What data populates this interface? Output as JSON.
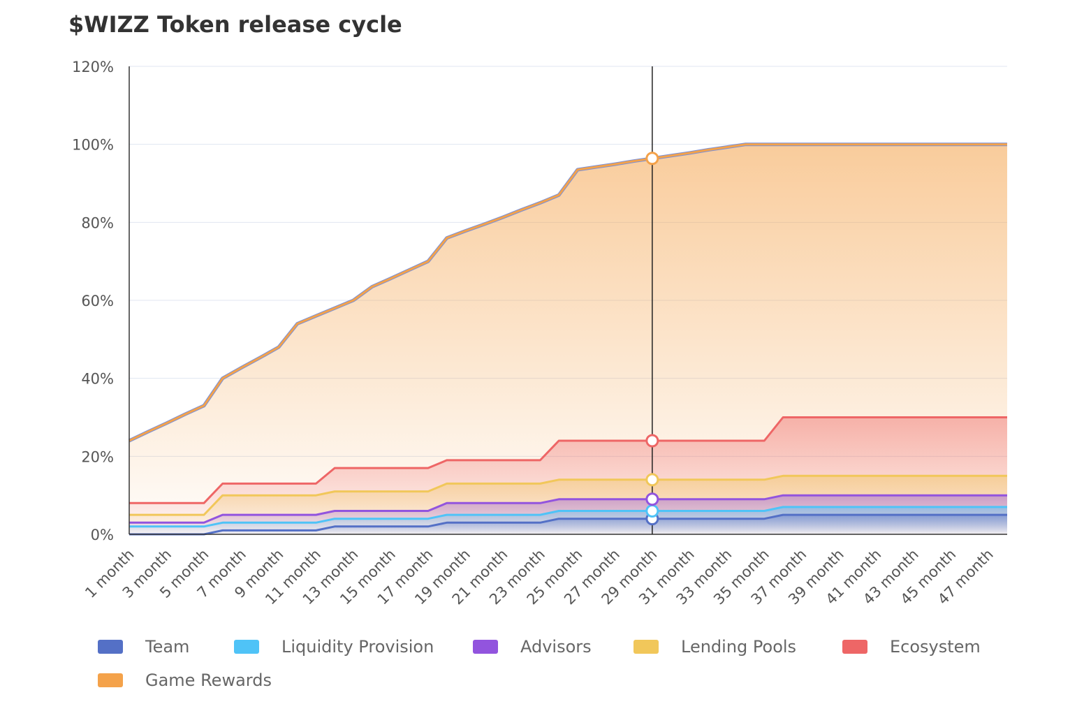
{
  "chart_data": {
    "type": "area",
    "title": "$WIZZ Token release cycle",
    "stacked": false,
    "x": [
      "1 month",
      "2 month",
      "3 month",
      "4 month",
      "5 month",
      "6 month",
      "7 month",
      "8 month",
      "9 month",
      "10 month",
      "11 month",
      "12 month",
      "13 month",
      "14 month",
      "15 month",
      "16 month",
      "17 month",
      "18 month",
      "19 month",
      "20 month",
      "21 month",
      "22 month",
      "23 month",
      "24 month",
      "25 month",
      "26 month",
      "27 month",
      "28 month",
      "29 month",
      "30 month",
      "31 month",
      "32 month",
      "33 month",
      "34 month",
      "35 month",
      "36 month",
      "37 month",
      "38 month",
      "39 month",
      "40 month",
      "41 month",
      "42 month",
      "43 month",
      "44 month",
      "45 month",
      "46 month",
      "47 month",
      "48 month"
    ],
    "x_tick_labels": [
      "1 month",
      "3 month",
      "5 month",
      "7 month",
      "9 month",
      "11 month",
      "13 month",
      "15 month",
      "17 month",
      "19 month",
      "21 month",
      "23 month",
      "25 month",
      "27 month",
      "29 month",
      "31 month",
      "33 month",
      "35 month",
      "37 month",
      "39 month",
      "41 month",
      "43 month",
      "45 month",
      "47 month"
    ],
    "y_ticks": [
      "0%",
      "20%",
      "40%",
      "60%",
      "80%",
      "100%",
      "120%"
    ],
    "ylim": [
      0,
      120
    ],
    "grid": true,
    "legend_position": "bottom",
    "highlight_index": 28,
    "series": [
      {
        "name": "Team",
        "color": "#5470c6",
        "values": [
          0,
          0,
          0,
          0,
          0,
          1,
          1,
          1,
          1,
          1,
          1,
          2,
          2,
          2,
          2,
          2,
          2,
          3,
          3,
          3,
          3,
          3,
          3,
          4,
          4,
          4,
          4,
          4,
          4,
          4,
          4,
          4,
          4,
          4,
          4,
          5,
          5,
          5,
          5,
          5,
          5,
          5,
          5,
          5,
          5,
          5,
          5,
          5
        ]
      },
      {
        "name": "Liquidity Provision",
        "color": "#4fc3f7",
        "values": [
          2,
          2,
          2,
          2,
          2,
          3,
          3,
          3,
          3,
          3,
          3,
          4,
          4,
          4,
          4,
          4,
          4,
          5,
          5,
          5,
          5,
          5,
          5,
          6,
          6,
          6,
          6,
          6,
          6,
          6,
          6,
          6,
          6,
          6,
          6,
          7,
          7,
          7,
          7,
          7,
          7,
          7,
          7,
          7,
          7,
          7,
          7,
          7
        ]
      },
      {
        "name": "Advisors",
        "color": "#9254de",
        "values": [
          3,
          3,
          3,
          3,
          3,
          5,
          5,
          5,
          5,
          5,
          5,
          6,
          6,
          6,
          6,
          6,
          6,
          8,
          8,
          8,
          8,
          8,
          8,
          9,
          9,
          9,
          9,
          9,
          9,
          9,
          9,
          9,
          9,
          9,
          9,
          10,
          10,
          10,
          10,
          10,
          10,
          10,
          10,
          10,
          10,
          10,
          10,
          10
        ]
      },
      {
        "name": "Lending Pools",
        "color": "#f1c75a",
        "values": [
          5,
          5,
          5,
          5,
          5,
          10,
          10,
          10,
          10,
          10,
          10,
          11,
          11,
          11,
          11,
          11,
          11,
          13,
          13,
          13,
          13,
          13,
          13,
          14,
          14,
          14,
          14,
          14,
          14,
          14,
          14,
          14,
          14,
          14,
          14,
          15,
          15,
          15,
          15,
          15,
          15,
          15,
          15,
          15,
          15,
          15,
          15,
          15
        ]
      },
      {
        "name": "Ecosystem",
        "color": "#ee6666",
        "values": [
          8,
          8,
          8,
          8,
          8,
          13,
          13,
          13,
          13,
          13,
          13,
          17,
          17,
          17,
          17,
          17,
          17,
          19,
          19,
          19,
          19,
          19,
          19,
          24,
          24,
          24,
          24,
          24,
          24,
          24,
          24,
          24,
          24,
          24,
          24,
          30,
          30,
          30,
          30,
          30,
          30,
          30,
          30,
          30,
          30,
          30,
          30,
          30
        ]
      },
      {
        "name": "Game Rewards",
        "color": "#f4a24a",
        "values": [
          24,
          26.3,
          28.5,
          30.8,
          33,
          40,
          42.7,
          45.3,
          48,
          54,
          56,
          58,
          60,
          63.5,
          65.6,
          67.8,
          70,
          76,
          77.8,
          79.5,
          81.3,
          83.2,
          85,
          87,
          93.5,
          94.2,
          94.9,
          95.7,
          96.4,
          97.1,
          97.8,
          98.6,
          99.3,
          100,
          100,
          100,
          100,
          100,
          100,
          100,
          100,
          100,
          100,
          100,
          100,
          100,
          100,
          100
        ]
      }
    ]
  }
}
